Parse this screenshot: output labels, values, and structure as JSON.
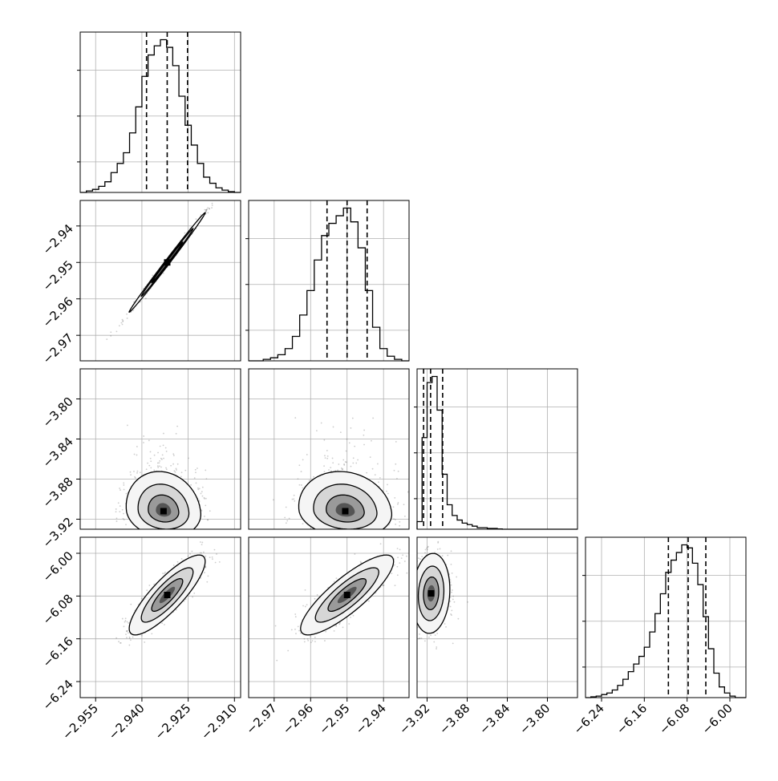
{
  "chart_data": {
    "type": "corner",
    "colors": {
      "ink": "#000000",
      "grid": "#b0b0b0",
      "contour_fills": [
        "#f5f5f5",
        "#d6d6d6",
        "#9a9a9a",
        "#555555",
        "#000000"
      ],
      "scatter": "#707070"
    },
    "parameters": [
      {
        "name": "",
        "range": [
          -2.96,
          -2.908
        ],
        "ticks": [
          -2.955,
          -2.94,
          -2.925,
          -2.91
        ],
        "tick_labels": [
          "−2.955",
          "−2.940",
          "−2.925",
          "−2.910"
        ],
        "quantiles": [
          -2.9385,
          -2.9318,
          -2.9252
        ],
        "histogram": {
          "bin_edges": [
            -2.96,
            -2.958,
            -2.956,
            -2.954,
            -2.952,
            -2.95,
            -2.948,
            -2.946,
            -2.944,
            -2.942,
            -2.94,
            -2.938,
            -2.936,
            -2.934,
            -2.932,
            -2.93,
            -2.928,
            -2.926,
            -2.924,
            -2.922,
            -2.92,
            -2.918,
            -2.916,
            -2.914,
            -2.912,
            -2.91,
            -2.908
          ],
          "counts": [
            0,
            0.01,
            0.02,
            0.04,
            0.07,
            0.13,
            0.19,
            0.26,
            0.39,
            0.56,
            0.76,
            0.9,
            0.96,
            1.0,
            0.95,
            0.83,
            0.63,
            0.44,
            0.31,
            0.19,
            0.1,
            0.06,
            0.03,
            0.015,
            0.005,
            0.0
          ],
          "yticks": [
            0.2,
            0.5,
            0.8
          ],
          "ymax": 1.05
        }
      },
      {
        "name": "",
        "range": [
          -2.977,
          -2.933
        ],
        "ticks": [
          -2.97,
          -2.96,
          -2.95,
          -2.94
        ],
        "tick_labels": [
          "−2.97",
          "−2.96",
          "−2.95",
          "−2.94"
        ],
        "quantiles": [
          -2.9555,
          -2.95,
          -2.9445
        ],
        "histogram": {
          "bin_edges": [
            -2.977,
            -2.975,
            -2.973,
            -2.971,
            -2.969,
            -2.967,
            -2.965,
            -2.963,
            -2.961,
            -2.959,
            -2.957,
            -2.955,
            -2.953,
            -2.951,
            -2.949,
            -2.947,
            -2.945,
            -2.943,
            -2.941,
            -2.939,
            -2.937,
            -2.935,
            -2.933
          ],
          "counts": [
            0,
            0.0,
            0.01,
            0.02,
            0.04,
            0.08,
            0.16,
            0.3,
            0.46,
            0.66,
            0.82,
            0.9,
            0.95,
            1.0,
            0.91,
            0.74,
            0.46,
            0.22,
            0.08,
            0.03,
            0.01,
            0.0
          ],
          "yticks": [
            0.2,
            0.5,
            0.8
          ],
          "ymax": 1.05
        }
      },
      {
        "name": "",
        "range": [
          -3.93,
          -3.77
        ],
        "ticks": [
          -3.92,
          -3.88,
          -3.84,
          -3.8
        ],
        "tick_labels": [
          "−3.92",
          "−3.88",
          "−3.84",
          "−3.80"
        ],
        "quantiles": [
          -3.9235,
          -3.9165,
          -3.9045
        ],
        "histogram": {
          "bin_edges": [
            -3.93,
            -3.925,
            -3.92,
            -3.915,
            -3.91,
            -3.905,
            -3.9,
            -3.895,
            -3.89,
            -3.885,
            -3.88,
            -3.875,
            -3.87,
            -3.865,
            -3.86,
            -3.855,
            -3.85,
            -3.845,
            -3.84,
            -3.835,
            -3.83,
            -3.825,
            -3.82,
            -3.815,
            -3.81,
            -3.805,
            -3.8,
            -3.795,
            -3.79,
            -3.785,
            -3.78,
            -3.775,
            -3.77
          ],
          "counts": [
            0.05,
            0.6,
            0.96,
            1.0,
            0.78,
            0.36,
            0.16,
            0.09,
            0.06,
            0.04,
            0.03,
            0.02,
            0.01,
            0.01,
            0.005,
            0.005,
            0.002,
            0.0,
            0.0,
            0.0,
            0.0,
            0.0,
            0.0,
            0.0,
            0.0,
            0.0,
            0.0,
            0.0,
            0.0,
            0.0,
            0.0,
            0.0
          ],
          "yticks": [
            0.2,
            0.5,
            0.8
          ],
          "ymax": 1.05
        }
      },
      {
        "name": "",
        "range": [
          -6.27,
          -5.97
        ],
        "ticks": [
          -6.24,
          -6.16,
          -6.08,
          -6.0
        ],
        "tick_labels": [
          "−6.24",
          "−6.16",
          "−6.08",
          "−6.00"
        ],
        "quantiles": [
          -6.115,
          -6.078,
          -6.045
        ],
        "histogram": {
          "bin_edges": [
            -6.27,
            -6.26,
            -6.25,
            -6.24,
            -6.23,
            -6.22,
            -6.21,
            -6.2,
            -6.19,
            -6.18,
            -6.17,
            -6.16,
            -6.15,
            -6.14,
            -6.13,
            -6.12,
            -6.11,
            -6.1,
            -6.09,
            -6.08,
            -6.07,
            -6.06,
            -6.05,
            -6.04,
            -6.03,
            -6.02,
            -6.01,
            -6.0,
            -5.99,
            -5.98,
            -5.97
          ],
          "counts": [
            0,
            0.005,
            0.01,
            0.02,
            0.03,
            0.05,
            0.08,
            0.12,
            0.17,
            0.22,
            0.27,
            0.33,
            0.43,
            0.55,
            0.68,
            0.82,
            0.9,
            0.95,
            1.0,
            0.98,
            0.88,
            0.74,
            0.53,
            0.32,
            0.16,
            0.07,
            0.03,
            0.01,
            0.0,
            0.0
          ],
          "yticks": [
            0.2,
            0.5,
            0.8
          ],
          "ymax": 1.05
        }
      }
    ],
    "pairs": [
      {
        "x": 0,
        "y": 1,
        "mean": [
          -2.9318,
          -2.95
        ],
        "sd": [
          0.0056,
          0.0062
        ],
        "rho": 0.997
      },
      {
        "x": 0,
        "y": 2,
        "mean": [
          -2.933,
          -3.912
        ],
        "sd": [
          0.0055,
          0.012
        ],
        "rho": -0.12
      },
      {
        "x": 1,
        "y": 2,
        "mean": [
          -2.9505,
          -3.912
        ],
        "sd": [
          0.0058,
          0.012
        ],
        "rho": -0.12
      },
      {
        "x": 0,
        "y": 3,
        "mean": [
          -2.9318,
          -6.078
        ],
        "sd": [
          0.0056,
          0.034
        ],
        "rho": 0.84
      },
      {
        "x": 1,
        "y": 3,
        "mean": [
          -2.95,
          -6.078
        ],
        "sd": [
          0.0058,
          0.034
        ],
        "rho": 0.84
      },
      {
        "x": 2,
        "y": 3,
        "mean": [
          -3.916,
          -6.075
        ],
        "sd": [
          0.0085,
          0.034
        ],
        "rho": 0.1
      }
    ]
  }
}
